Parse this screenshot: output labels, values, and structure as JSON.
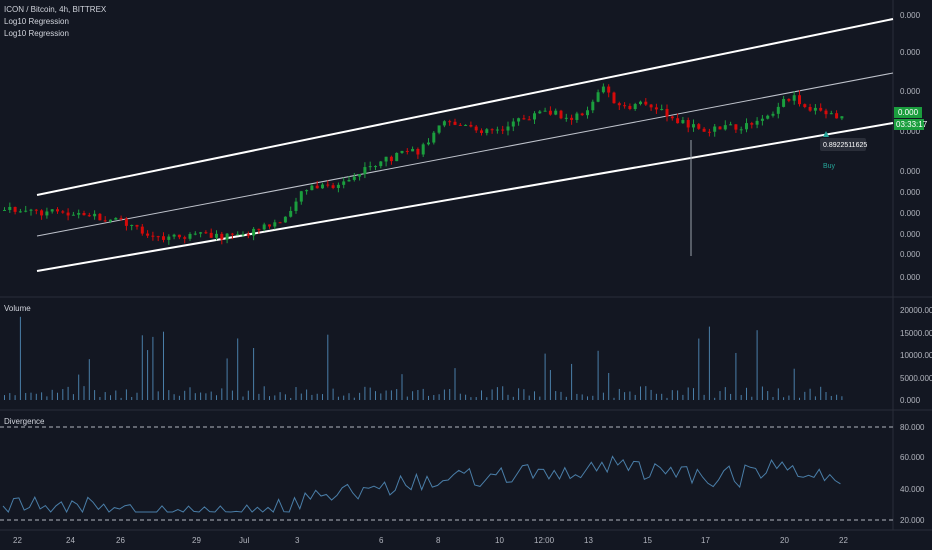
{
  "header": {
    "symbol": "ICON / Bitcoin, 4h, BITTREX",
    "indicators": [
      "Log10 Regression",
      "Log10 Regression"
    ]
  },
  "price_pane": {
    "axis_labels": [
      "0.000",
      "0.000",
      "0.000",
      "0.000",
      "0.000",
      "0.000",
      "0.000",
      "0.000",
      "0.000",
      "0.000",
      "0.000",
      "0.000"
    ],
    "last_price": "0.000",
    "countdown": "03:33:17",
    "crosshair_value": "0.8922511625",
    "signal_label": "Buy"
  },
  "volume_pane": {
    "title": "Volume",
    "axis_labels": [
      "20000.000",
      "15000.000",
      "10000.000",
      "5000.000",
      "0.000"
    ]
  },
  "divergence_pane": {
    "title": "Divergence",
    "axis_labels": [
      "80.000",
      "60.000",
      "40.000",
      "20.000"
    ]
  },
  "x_axis": {
    "labels": [
      "22",
      "24",
      "26",
      "29",
      "Jul",
      "3",
      "6",
      "8",
      "10",
      "12:00",
      "13",
      "15",
      "17",
      "20",
      "22"
    ]
  },
  "colors": {
    "background": "#131722",
    "up": "#26a69a",
    "up_candle": "#1b9e3e",
    "down_candle": "#d60a0a",
    "volume": "#4a7ea8",
    "divergence": "#4a7ea8",
    "channel": "#ffffff",
    "last_price_bg": "#1b9e3e",
    "axis_text": "#b2b5be"
  },
  "chart_data": {
    "type": "candlestick",
    "title": "ICON / Bitcoin, 4h, BITTREX",
    "price_levels": 12,
    "candles_approx": 160,
    "volume": {
      "name": "Volume",
      "ylim": [
        0,
        20000
      ]
    },
    "divergence": {
      "name": "Divergence",
      "ylim": [
        20,
        80
      ],
      "bands": [
        20,
        80
      ]
    },
    "regression_channel": {
      "name": "Log10 Regression",
      "lines": 3
    },
    "signal": {
      "label": "Buy",
      "value": 0.8922511625
    }
  }
}
